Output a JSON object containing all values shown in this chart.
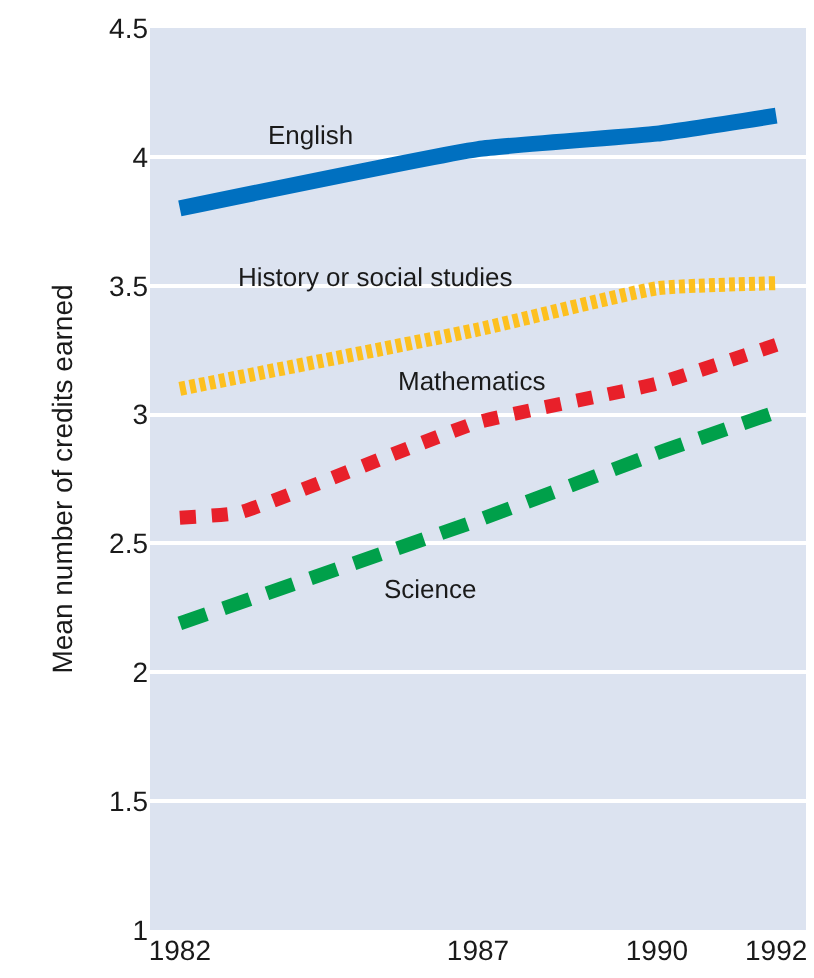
{
  "chart_data": {
    "type": "line",
    "ylabel": "Mean number of credits earned",
    "x": [
      1982,
      1987,
      1990,
      1992
    ],
    "xlim": [
      1981.5,
      1992.5
    ],
    "xticks": [
      1982,
      1987,
      1990,
      1992
    ],
    "ylim": [
      1,
      4.5
    ],
    "yticks": [
      1,
      1.5,
      2,
      2.5,
      3,
      3.5,
      4,
      4.5
    ],
    "grid": "y",
    "legend": false,
    "series": [
      {
        "name": "English",
        "color": "#0070c0",
        "line_style": "solid",
        "values": [
          3.8,
          4.03,
          4.09,
          4.16
        ]
      },
      {
        "name": "History or social studies",
        "color": "#fdc01f",
        "line_style": "dotted",
        "values": [
          3.1,
          3.33,
          3.49,
          3.51
        ]
      },
      {
        "name": "Mathematics",
        "color": "#e8202a",
        "line_style": "dotted",
        "x": [
          1982,
          1983,
          1987,
          1990,
          1992
        ],
        "values": [
          2.6,
          2.62,
          2.97,
          3.12,
          3.27
        ]
      },
      {
        "name": "Science",
        "color": "#00a04a",
        "line_style": "dashed",
        "values": [
          2.19,
          2.59,
          2.85,
          3.01
        ]
      }
    ]
  }
}
